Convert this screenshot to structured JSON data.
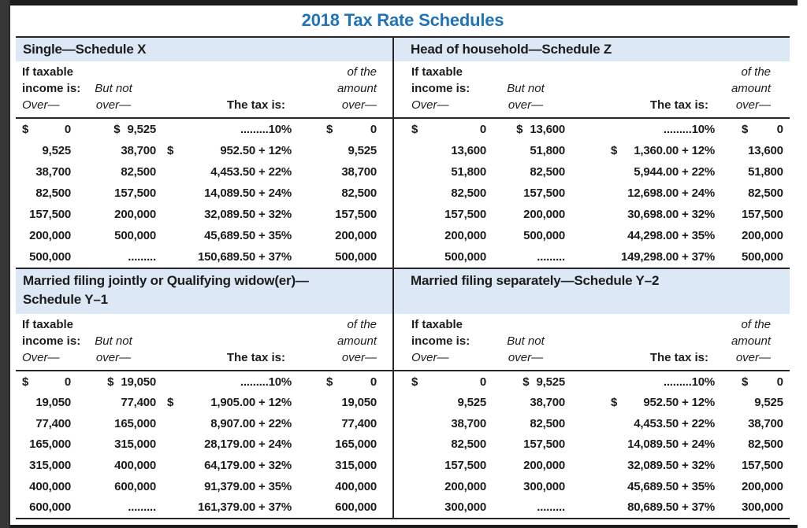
{
  "page_title": "2018 Tax Rate Schedules",
  "colors": {
    "title_blue": "#1e73b9",
    "band_blue": "#dce8f5",
    "rule_dark": "#2a2628"
  },
  "column_headers": {
    "col1_line1": "If taxable",
    "col1_line2": "income is:",
    "col1_line3": "Over—",
    "col2_line1": "But not",
    "col2_line2": "over—",
    "col3": "The tax is:",
    "col4_line1": "of the",
    "col4_line2": "amount",
    "col4_line3": "over—"
  },
  "schedules": [
    {
      "title_line1": "Single—Schedule X",
      "title_line2": "",
      "rows": [
        {
          "d_over": "$",
          "over": "0",
          "d_but": "$",
          "but": "9,525",
          "d_tax": "",
          "tax": ".........10%",
          "d_amt": "$",
          "amt": "0"
        },
        {
          "d_over": "",
          "over": "9,525",
          "d_but": "",
          "but": "38,700",
          "d_tax": "$",
          "tax": "952.50 + 12%",
          "d_amt": "",
          "amt": "9,525"
        },
        {
          "d_over": "",
          "over": "38,700",
          "d_but": "",
          "but": "82,500",
          "d_tax": "",
          "tax": "4,453.50 + 22%",
          "d_amt": "",
          "amt": "38,700"
        },
        {
          "d_over": "",
          "over": "82,500",
          "d_but": "",
          "but": "157,500",
          "d_tax": "",
          "tax": "14,089.50 + 24%",
          "d_amt": "",
          "amt": "82,500"
        },
        {
          "d_over": "",
          "over": "157,500",
          "d_but": "",
          "but": "200,000",
          "d_tax": "",
          "tax": "32,089.50 + 32%",
          "d_amt": "",
          "amt": "157,500"
        },
        {
          "d_over": "",
          "over": "200,000",
          "d_but": "",
          "but": "500,000",
          "d_tax": "",
          "tax": "45,689.50 + 35%",
          "d_amt": "",
          "amt": "200,000"
        },
        {
          "d_over": "",
          "over": "500,000",
          "d_but": "",
          "but": ".........",
          "d_tax": "",
          "tax": "150,689.50 + 37%",
          "d_amt": "",
          "amt": "500,000"
        }
      ]
    },
    {
      "title_line1": "Head of household—Schedule Z",
      "title_line2": "",
      "rows": [
        {
          "d_over": "$",
          "over": "0",
          "d_but": "$",
          "but": "13,600",
          "d_tax": "",
          "tax": ".........10%",
          "d_amt": "$",
          "amt": "0"
        },
        {
          "d_over": "",
          "over": "13,600",
          "d_but": "",
          "but": "51,800",
          "d_tax": "$",
          "tax": "1,360.00 + 12%",
          "d_amt": "",
          "amt": "13,600"
        },
        {
          "d_over": "",
          "over": "51,800",
          "d_but": "",
          "but": "82,500",
          "d_tax": "",
          "tax": "5,944.00 + 22%",
          "d_amt": "",
          "amt": "51,800"
        },
        {
          "d_over": "",
          "over": "82,500",
          "d_but": "",
          "but": "157,500",
          "d_tax": "",
          "tax": "12,698.00 + 24%",
          "d_amt": "",
          "amt": "82,500"
        },
        {
          "d_over": "",
          "over": "157,500",
          "d_but": "",
          "but": "200,000",
          "d_tax": "",
          "tax": "30,698.00 + 32%",
          "d_amt": "",
          "amt": "157,500"
        },
        {
          "d_over": "",
          "over": "200,000",
          "d_but": "",
          "but": "500,000",
          "d_tax": "",
          "tax": "44,298.00 + 35%",
          "d_amt": "",
          "amt": "200,000"
        },
        {
          "d_over": "",
          "over": "500,000",
          "d_but": "",
          "but": ".........",
          "d_tax": "",
          "tax": "149,298.00 + 37%",
          "d_amt": "",
          "amt": "500,000"
        }
      ]
    },
    {
      "title_line1": "Married filing jointly or Qualifying widow(er)—",
      "title_line2": "Schedule Y–1",
      "rows": [
        {
          "d_over": "$",
          "over": "0",
          "d_but": "$",
          "but": "19,050",
          "d_tax": "",
          "tax": ".........10%",
          "d_amt": "$",
          "amt": "0"
        },
        {
          "d_over": "",
          "over": "19,050",
          "d_but": "",
          "but": "77,400",
          "d_tax": "$",
          "tax": "1,905.00 + 12%",
          "d_amt": "",
          "amt": "19,050"
        },
        {
          "d_over": "",
          "over": "77,400",
          "d_but": "",
          "but": "165,000",
          "d_tax": "",
          "tax": "8,907.00 + 22%",
          "d_amt": "",
          "amt": "77,400"
        },
        {
          "d_over": "",
          "over": "165,000",
          "d_but": "",
          "but": "315,000",
          "d_tax": "",
          "tax": "28,179.00 + 24%",
          "d_amt": "",
          "amt": "165,000"
        },
        {
          "d_over": "",
          "over": "315,000",
          "d_but": "",
          "but": "400,000",
          "d_tax": "",
          "tax": "64,179.00 + 32%",
          "d_amt": "",
          "amt": "315,000"
        },
        {
          "d_over": "",
          "over": "400,000",
          "d_but": "",
          "but": "600,000",
          "d_tax": "",
          "tax": "91,379.00 + 35%",
          "d_amt": "",
          "amt": "400,000"
        },
        {
          "d_over": "",
          "over": "600,000",
          "d_but": "",
          "but": ".........",
          "d_tax": "",
          "tax": "161,379.00 + 37%",
          "d_amt": "",
          "amt": "600,000"
        }
      ]
    },
    {
      "title_line1": "Married filing separately—Schedule Y–2",
      "title_line2": "",
      "rows": [
        {
          "d_over": "$",
          "over": "0",
          "d_but": "$",
          "but": "9,525",
          "d_tax": "",
          "tax": ".........10%",
          "d_amt": "$",
          "amt": "0"
        },
        {
          "d_over": "",
          "over": "9,525",
          "d_but": "",
          "but": "38,700",
          "d_tax": "$",
          "tax": "952.50 + 12%",
          "d_amt": "",
          "amt": "9,525"
        },
        {
          "d_over": "",
          "over": "38,700",
          "d_but": "",
          "but": "82,500",
          "d_tax": "",
          "tax": "4,453.50 + 22%",
          "d_amt": "",
          "amt": "38,700"
        },
        {
          "d_over": "",
          "over": "82,500",
          "d_but": "",
          "but": "157,500",
          "d_tax": "",
          "tax": "14,089.50 + 24%",
          "d_amt": "",
          "amt": "82,500"
        },
        {
          "d_over": "",
          "over": "157,500",
          "d_but": "",
          "but": "200,000",
          "d_tax": "",
          "tax": "32,089.50 + 32%",
          "d_amt": "",
          "amt": "157,500"
        },
        {
          "d_over": "",
          "over": "200,000",
          "d_but": "",
          "but": "300,000",
          "d_tax": "",
          "tax": "45,689.50 + 35%",
          "d_amt": "",
          "amt": "200,000"
        },
        {
          "d_over": "",
          "over": "300,000",
          "d_but": "",
          "but": ".........",
          "d_tax": "",
          "tax": "80,689.50 + 37%",
          "d_amt": "",
          "amt": "300,000"
        }
      ]
    }
  ]
}
